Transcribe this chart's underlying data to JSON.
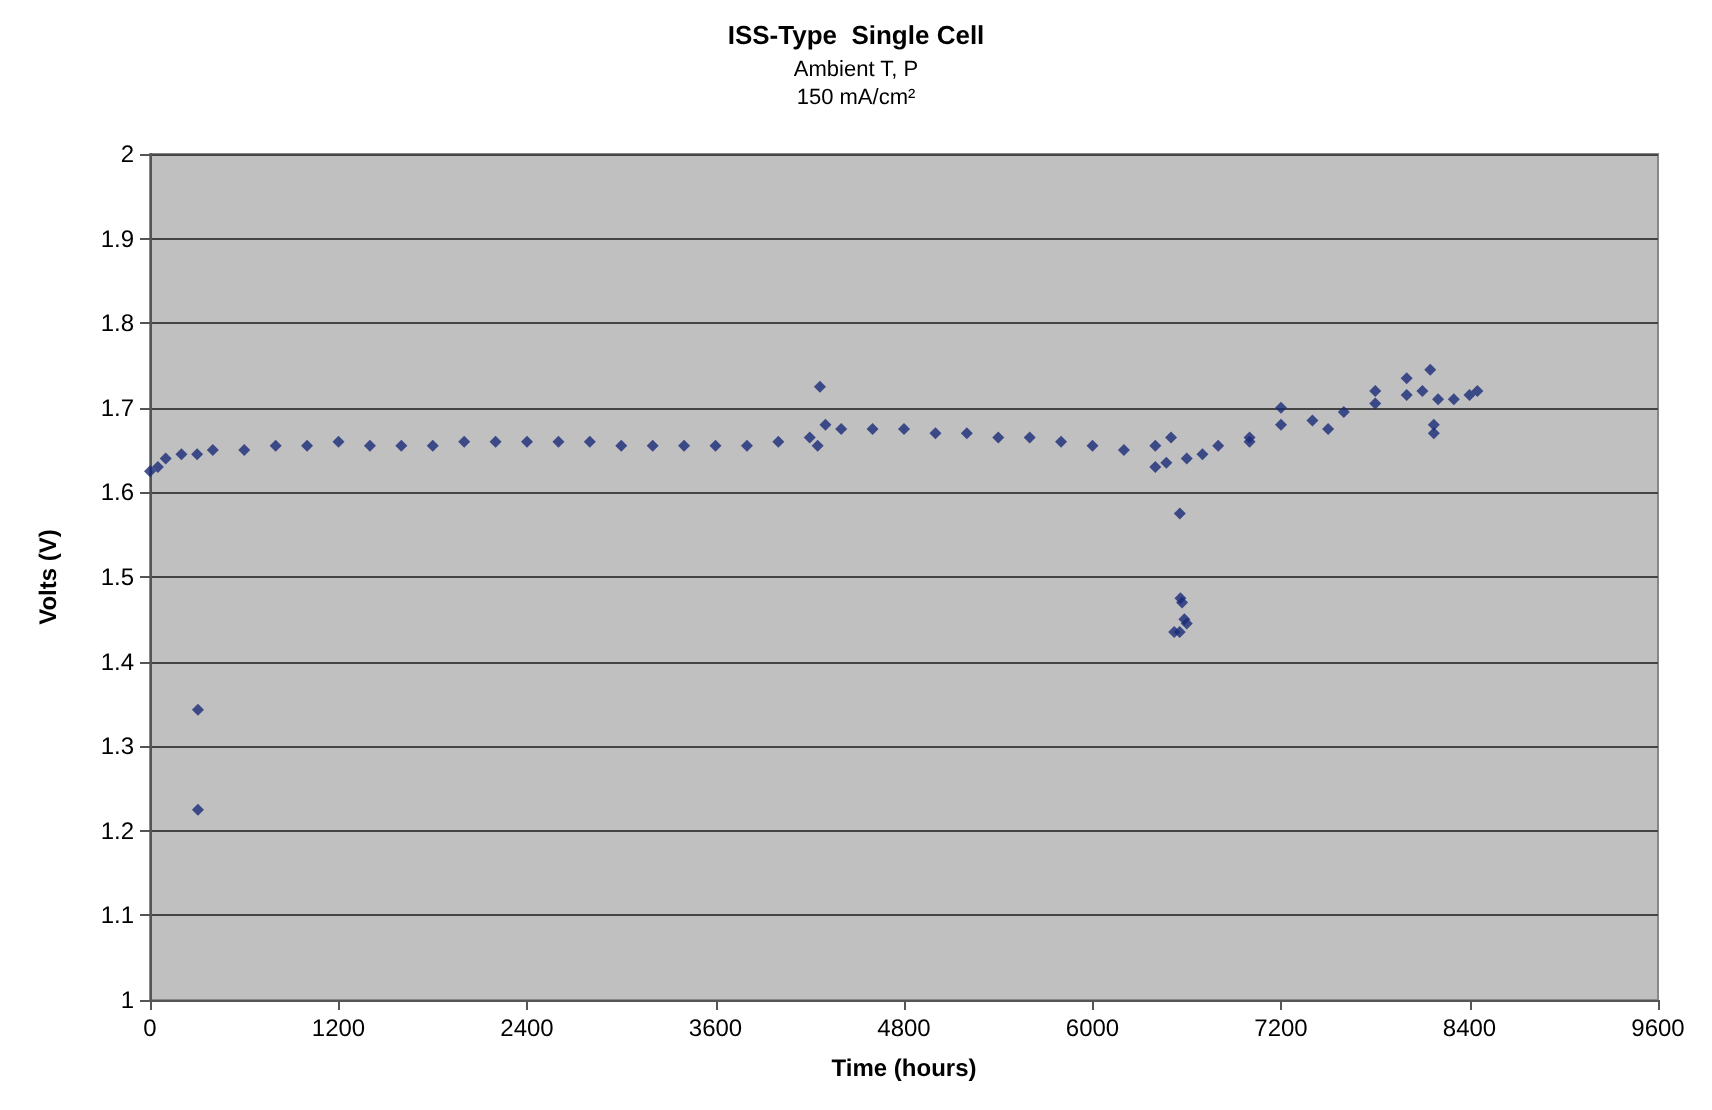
{
  "chart_data": {
    "type": "scatter",
    "title": "ISS-Type  Single Cell",
    "subtitle": "Ambient T, P\n150 mA/cm²",
    "xlabel": "Time (hours)",
    "ylabel": "Volts (V)",
    "x": [
      0,
      50,
      100,
      200,
      300,
      400,
      600,
      800,
      1000,
      1200,
      1400,
      1600,
      1800,
      2000,
      2200,
      2400,
      2600,
      2800,
      3000,
      3200,
      3400,
      3600,
      3800,
      4000,
      4200,
      4250,
      4300,
      4400,
      4600,
      4800,
      5000,
      5200,
      5400,
      5600,
      5800,
      6000,
      6200,
      6400,
      6500,
      6600,
      6700,
      6800,
      7000,
      7200,
      7400,
      7600,
      7800,
      8000,
      8100,
      8200,
      8300,
      8400,
      8450,
      305,
      305,
      4265,
      6400,
      6470,
      6556,
      6560,
      6570,
      6585,
      6600,
      6520,
      6555,
      8173,
      8173,
      7000,
      7200,
      7500,
      7800,
      8000,
      8150
    ],
    "series": [
      {
        "color": "#1a2a78",
        "values": [
          1.625,
          1.63,
          1.64,
          1.645,
          1.645,
          1.65,
          1.65,
          1.655,
          1.655,
          1.66,
          1.655,
          1.655,
          1.655,
          1.66,
          1.66,
          1.66,
          1.66,
          1.66,
          1.655,
          1.655,
          1.655,
          1.655,
          1.655,
          1.66,
          1.665,
          1.655,
          1.68,
          1.675,
          1.675,
          1.675,
          1.67,
          1.67,
          1.665,
          1.665,
          1.66,
          1.655,
          1.65,
          1.655,
          1.665,
          1.64,
          1.645,
          1.655,
          1.665,
          1.68,
          1.685,
          1.695,
          1.705,
          1.715,
          1.72,
          1.71,
          1.71,
          1.715,
          1.72,
          1.343,
          1.225,
          1.725,
          1.63,
          1.635,
          1.575,
          1.475,
          1.47,
          1.45,
          1.445,
          1.435,
          1.435,
          1.68,
          1.67,
          1.66,
          1.7,
          1.675,
          1.72,
          1.735,
          1.745
        ]
      }
    ],
    "xlim": [
      0,
      9600
    ],
    "xticks": [
      0,
      1200,
      2400,
      3600,
      4800,
      6000,
      7200,
      8400,
      9600
    ],
    "ylim": [
      1,
      2
    ],
    "yticks": [
      1,
      1.1,
      1.2,
      1.3,
      1.4,
      1.5,
      1.6,
      1.7,
      1.8,
      1.9,
      2
    ],
    "grid": "y",
    "marker": "diamond"
  }
}
